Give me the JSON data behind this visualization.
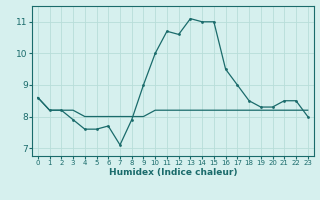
{
  "xlabel": "Humidex (Indice chaleur)",
  "ylabel": "",
  "background_color": "#d6f0ee",
  "grid_color": "#b8ddd9",
  "line_color": "#1a6b6b",
  "xlim": [
    -0.5,
    23.5
  ],
  "ylim": [
    6.75,
    11.5
  ],
  "yticks": [
    7,
    8,
    9,
    10,
    11
  ],
  "xticks": [
    0,
    1,
    2,
    3,
    4,
    5,
    6,
    7,
    8,
    9,
    10,
    11,
    12,
    13,
    14,
    15,
    16,
    17,
    18,
    19,
    20,
    21,
    22,
    23
  ],
  "curve1_x": [
    0,
    1,
    2,
    3,
    4,
    5,
    6,
    7,
    8,
    9,
    10,
    11,
    12,
    13,
    14,
    15,
    16,
    17,
    18,
    19,
    20,
    21,
    22,
    23
  ],
  "curve1_y": [
    8.6,
    8.2,
    8.2,
    7.9,
    7.6,
    7.6,
    7.7,
    7.1,
    7.9,
    9.0,
    10.0,
    10.7,
    10.6,
    11.1,
    11.0,
    11.0,
    9.5,
    9.0,
    8.5,
    8.3,
    8.3,
    8.5,
    8.5,
    8.0
  ],
  "curve2_x": [
    0,
    1,
    2,
    3,
    4,
    5,
    6,
    7,
    8,
    9,
    10,
    11,
    12,
    13,
    14,
    15,
    16,
    17,
    18,
    19,
    20,
    21,
    22,
    23
  ],
  "curve2_y": [
    8.6,
    8.2,
    8.2,
    8.2,
    8.0,
    8.0,
    8.0,
    8.0,
    8.0,
    8.0,
    8.2,
    8.2,
    8.2,
    8.2,
    8.2,
    8.2,
    8.2,
    8.2,
    8.2,
    8.2,
    8.2,
    8.2,
    8.2,
    8.2
  ]
}
